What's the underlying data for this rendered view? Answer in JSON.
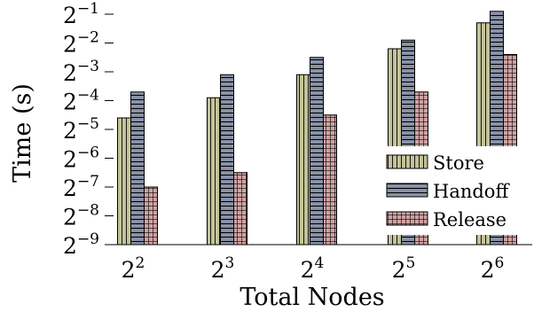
{
  "chart_data": {
    "type": "bar",
    "xlabel": "Total Nodes",
    "ylabel": "Time (s)",
    "y_scale": "log2",
    "ylim": [
      -9,
      -0.5
    ],
    "categories": [
      {
        "base": "2",
        "exp": "2"
      },
      {
        "base": "2",
        "exp": "3"
      },
      {
        "base": "2",
        "exp": "4"
      },
      {
        "base": "2",
        "exp": "5"
      },
      {
        "base": "2",
        "exp": "6"
      }
    ],
    "y_ticks": [
      {
        "value": -1,
        "base": "2",
        "exp": "−1"
      },
      {
        "value": -2,
        "base": "2",
        "exp": "−2"
      },
      {
        "value": -3,
        "base": "2",
        "exp": "−3"
      },
      {
        "value": -4,
        "base": "2",
        "exp": "−4"
      },
      {
        "value": -5,
        "base": "2",
        "exp": "−5"
      },
      {
        "value": -6,
        "base": "2",
        "exp": "−6"
      },
      {
        "value": -7,
        "base": "2",
        "exp": "−7"
      },
      {
        "value": -8,
        "base": "2",
        "exp": "−8"
      },
      {
        "value": -9,
        "base": "2",
        "exp": "−9"
      }
    ],
    "series": [
      {
        "name": "Store",
        "color": "#c3c39a",
        "pattern": "vertical-lines",
        "log2_values": [
          -4.6,
          -3.9,
          -3.1,
          -2.2,
          -1.3
        ]
      },
      {
        "name": "Handoff",
        "color": "#8a93a8",
        "pattern": "horizontal-lines",
        "log2_values": [
          -3.7,
          -3.1,
          -2.5,
          -1.9,
          -0.9
        ]
      },
      {
        "name": "Release",
        "color": "#cfa2a2",
        "pattern": "grid",
        "log2_values": [
          -7.0,
          -6.5,
          -4.5,
          -3.7,
          -2.4
        ]
      }
    ],
    "legend": {
      "position": "right",
      "entries": [
        "Store",
        "Handoff",
        "Release"
      ]
    },
    "grid": false
  }
}
